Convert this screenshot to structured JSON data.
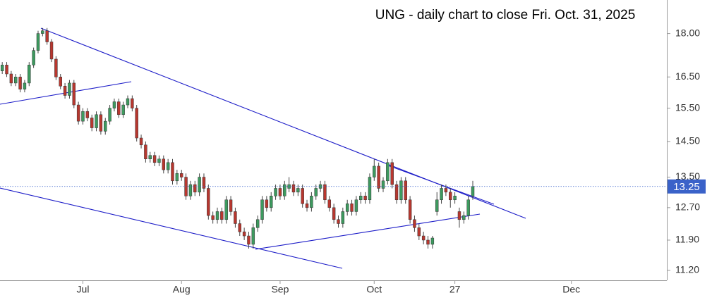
{
  "chart_data": {
    "type": "candlestick",
    "title": "UNG - daily chart to close Fri. Oct. 31, 2025",
    "log_scale": true,
    "up_color": "#3d9a5f",
    "down_color": "#b8372f",
    "wick_color": "#444444",
    "last_price_color": "#3a62c9",
    "ylim": [
      10.98,
      19.25
    ],
    "yticks": [
      {
        "value": 18,
        "label": "18.00"
      },
      {
        "value": 16.5,
        "label": "16.50"
      },
      {
        "value": 15.5,
        "label": "15.50"
      },
      {
        "value": 14.5,
        "label": "14.50"
      },
      {
        "value": 13.5,
        "label": "13.50"
      },
      {
        "value": 12.7,
        "label": "12.70"
      },
      {
        "value": 11.9,
        "label": "11.90"
      },
      {
        "value": 11.2,
        "label": "11.20"
      }
    ],
    "xlim": [
      -0.5,
      148.3
    ],
    "xticks": [
      {
        "value": 18,
        "label": "Jul"
      },
      {
        "value": 40,
        "label": "Aug"
      },
      {
        "value": 62,
        "label": "Sep"
      },
      {
        "value": 83,
        "label": "Oct"
      },
      {
        "value": 101,
        "label": "27"
      },
      {
        "value": 127,
        "label": "Dec"
      }
    ],
    "last_price": 13.25,
    "ohlc": [
      [
        16.7,
        17.0,
        16.6,
        16.9
      ],
      [
        16.9,
        17.0,
        16.5,
        16.6
      ],
      [
        16.6,
        16.7,
        16.2,
        16.3
      ],
      [
        16.3,
        16.6,
        16.2,
        16.5
      ],
      [
        16.5,
        16.6,
        16.0,
        16.1
      ],
      [
        16.1,
        16.4,
        16.0,
        16.3
      ],
      [
        16.3,
        17.0,
        16.2,
        16.9
      ],
      [
        16.9,
        17.5,
        16.8,
        17.4
      ],
      [
        17.4,
        18.1,
        17.3,
        18.0
      ],
      [
        18.0,
        18.2,
        17.9,
        18.1
      ],
      [
        18.1,
        18.2,
        17.6,
        17.7
      ],
      [
        17.7,
        17.8,
        17.0,
        17.1
      ],
      [
        17.1,
        17.2,
        16.4,
        16.5
      ],
      [
        16.5,
        16.6,
        16.1,
        16.2
      ],
      [
        16.2,
        16.3,
        15.8,
        15.9
      ],
      [
        15.9,
        16.4,
        15.8,
        16.3
      ],
      [
        16.3,
        16.4,
        15.5,
        15.6
      ],
      [
        15.6,
        15.7,
        15.0,
        15.1
      ],
      [
        15.1,
        15.5,
        15.0,
        15.4
      ],
      [
        15.4,
        15.5,
        15.1,
        15.2
      ],
      [
        15.2,
        15.3,
        14.8,
        14.9
      ],
      [
        14.9,
        15.4,
        14.8,
        15.3
      ],
      [
        15.3,
        15.4,
        14.7,
        14.8
      ],
      [
        14.8,
        15.2,
        14.7,
        15.1
      ],
      [
        15.1,
        15.6,
        15.0,
        15.5
      ],
      [
        15.5,
        15.8,
        15.4,
        15.7
      ],
      [
        15.7,
        15.8,
        15.2,
        15.3
      ],
      [
        15.3,
        15.7,
        15.2,
        15.6
      ],
      [
        15.6,
        15.9,
        15.5,
        15.8
      ],
      [
        15.8,
        15.9,
        15.4,
        15.5
      ],
      [
        15.5,
        15.6,
        14.5,
        14.6
      ],
      [
        14.6,
        14.7,
        14.3,
        14.4
      ],
      [
        14.4,
        14.5,
        13.9,
        14.0
      ],
      [
        14.0,
        14.2,
        13.9,
        14.1
      ],
      [
        14.1,
        14.2,
        13.8,
        13.9
      ],
      [
        13.9,
        14.1,
        13.8,
        14.0
      ],
      [
        14.0,
        14.1,
        13.6,
        13.7
      ],
      [
        13.7,
        14.0,
        13.6,
        13.9
      ],
      [
        13.9,
        14.0,
        13.3,
        13.4
      ],
      [
        13.4,
        13.7,
        13.3,
        13.6
      ],
      [
        13.6,
        13.7,
        13.4,
        13.5
      ],
      [
        13.5,
        13.6,
        12.9,
        13.0
      ],
      [
        13.0,
        13.4,
        12.9,
        13.3
      ],
      [
        13.3,
        13.4,
        13.0,
        13.1
      ],
      [
        13.1,
        13.6,
        13.0,
        13.5
      ],
      [
        13.5,
        13.6,
        13.1,
        13.2
      ],
      [
        13.2,
        13.3,
        12.4,
        12.5
      ],
      [
        12.5,
        12.6,
        12.3,
        12.4
      ],
      [
        12.4,
        12.7,
        12.3,
        12.6
      ],
      [
        12.6,
        12.7,
        12.3,
        12.4
      ],
      [
        12.4,
        13.0,
        12.3,
        12.9
      ],
      [
        12.9,
        13.0,
        12.5,
        12.6
      ],
      [
        12.6,
        12.7,
        12.2,
        12.3
      ],
      [
        12.3,
        12.4,
        12.0,
        12.1
      ],
      [
        12.1,
        12.2,
        11.9,
        12.0
      ],
      [
        12.0,
        12.1,
        11.7,
        11.8
      ],
      [
        11.8,
        12.3,
        11.7,
        12.2
      ],
      [
        12.2,
        12.5,
        12.1,
        12.4
      ],
      [
        12.4,
        13.0,
        12.3,
        12.9
      ],
      [
        12.9,
        13.0,
        12.6,
        12.7
      ],
      [
        12.7,
        13.1,
        12.6,
        13.0
      ],
      [
        13.0,
        13.3,
        12.9,
        13.2
      ],
      [
        13.2,
        13.3,
        12.9,
        13.0
      ],
      [
        13.0,
        13.4,
        12.9,
        13.3
      ],
      [
        13.2,
        13.5,
        13.1,
        13.3
      ],
      [
        13.3,
        13.4,
        13.0,
        13.1
      ],
      [
        13.1,
        13.3,
        13.0,
        13.2
      ],
      [
        13.2,
        13.3,
        12.7,
        12.8
      ],
      [
        12.8,
        12.9,
        12.6,
        12.7
      ],
      [
        12.7,
        13.1,
        12.6,
        13.0
      ],
      [
        13.0,
        13.3,
        12.9,
        13.2
      ],
      [
        13.2,
        13.4,
        13.1,
        13.3
      ],
      [
        13.3,
        13.4,
        12.8,
        12.9
      ],
      [
        12.9,
        13.0,
        12.6,
        12.7
      ],
      [
        12.7,
        12.8,
        12.3,
        12.4
      ],
      [
        12.4,
        12.5,
        12.2,
        12.3
      ],
      [
        12.3,
        12.7,
        12.2,
        12.6
      ],
      [
        12.6,
        12.9,
        12.5,
        12.8
      ],
      [
        12.8,
        12.9,
        12.5,
        12.6
      ],
      [
        12.6,
        13.0,
        12.5,
        12.9
      ],
      [
        12.9,
        13.1,
        12.8,
        13.0
      ],
      [
        13.0,
        13.1,
        12.8,
        12.9
      ],
      [
        12.9,
        13.6,
        12.8,
        13.5
      ],
      [
        13.5,
        14.0,
        13.4,
        13.8
      ],
      [
        13.8,
        13.9,
        13.1,
        13.2
      ],
      [
        13.2,
        13.5,
        13.1,
        13.4
      ],
      [
        13.4,
        14.0,
        13.3,
        13.9
      ],
      [
        13.9,
        14.0,
        13.2,
        13.3
      ],
      [
        13.3,
        13.4,
        12.8,
        12.9
      ],
      [
        12.9,
        13.5,
        12.8,
        13.4
      ],
      [
        13.4,
        13.5,
        12.8,
        12.9
      ],
      [
        12.9,
        13.0,
        12.3,
        12.4
      ],
      [
        12.4,
        12.5,
        12.1,
        12.2
      ],
      [
        12.2,
        12.3,
        11.9,
        12.0
      ],
      [
        12.0,
        12.1,
        11.8,
        11.9
      ],
      [
        11.9,
        12.0,
        11.7,
        11.8
      ],
      [
        11.8,
        12.0,
        11.7,
        11.95
      ],
      [
        12.6,
        13.1,
        12.5,
        12.9
      ],
      [
        12.9,
        13.3,
        12.8,
        13.2
      ],
      [
        13.2,
        13.3,
        13.0,
        13.1
      ],
      [
        13.1,
        13.2,
        12.7,
        12.9
      ],
      [
        12.9,
        13.1,
        12.8,
        13.0
      ],
      [
        12.6,
        12.7,
        12.2,
        12.4
      ],
      [
        12.4,
        12.6,
        12.3,
        12.5
      ],
      [
        12.5,
        13.0,
        12.4,
        12.9
      ],
      [
        13.0,
        13.4,
        12.9,
        13.25
      ]
    ]
  }
}
